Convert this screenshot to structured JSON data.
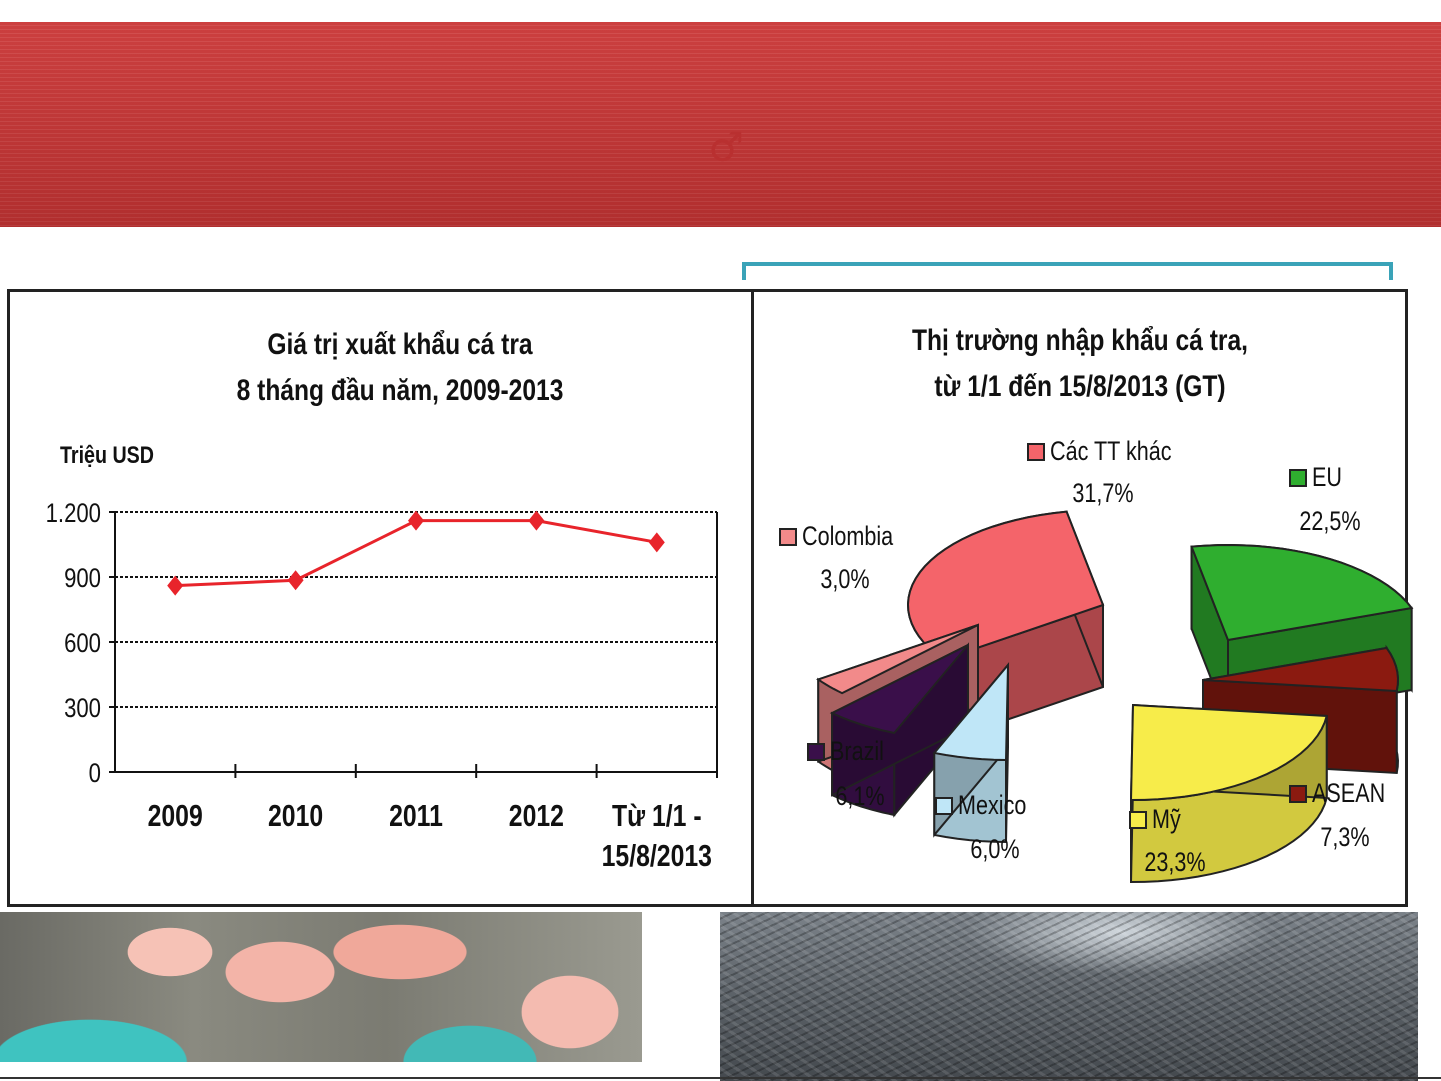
{
  "chart_data": [
    {
      "type": "line",
      "title_line1": "Giá trị xuất khẩu cá tra",
      "title_line2": "8 tháng đầu năm, 2009-2013",
      "ylabel": "Triệu USD",
      "categories": [
        {
          "line1": "2009",
          "line2": ""
        },
        {
          "line1": "2010",
          "line2": ""
        },
        {
          "line1": "2011",
          "line2": ""
        },
        {
          "line1": "2012",
          "line2": ""
        },
        {
          "line1": "Từ 1/1 -",
          "line2": "15/8/2013"
        }
      ],
      "values": [
        860,
        885,
        1160,
        1160,
        1060
      ],
      "ylim": [
        0,
        1200
      ],
      "yticks": [
        {
          "value": 0,
          "label": "0"
        },
        {
          "value": 300,
          "label": "300"
        },
        {
          "value": 600,
          "label": "600"
        },
        {
          "value": 900,
          "label": "900"
        },
        {
          "value": 1200,
          "label": "1.200"
        }
      ],
      "grid": true,
      "color": "#e8242b"
    },
    {
      "type": "pie",
      "title_line1": "Thị trường nhập khẩu cá tra,",
      "title_line2": "từ 1/1 đến 15/8/2013 (GT)",
      "slices": [
        {
          "name": "Các TT khác",
          "value": 31.7,
          "label": "31,7%",
          "color": "#f4646a"
        },
        {
          "name": "EU",
          "value": 22.5,
          "label": "22,5%",
          "color": "#2fae2f"
        },
        {
          "name": "ASEAN",
          "value": 7.3,
          "label": "7,3%",
          "color": "#8b1a10"
        },
        {
          "name": "Mỹ",
          "value": 23.3,
          "label": "23,3%",
          "color": "#f7ec4a"
        },
        {
          "name": "Mexico",
          "value": 6.0,
          "label": "6,0%",
          "color": "#bfe6f7"
        },
        {
          "name": "Brazil",
          "value": 6.1,
          "label": "6,1%",
          "color": "#3a0f4a"
        },
        {
          "name": "Colombia",
          "value": 3.0,
          "label": "3,0%",
          "color": "#f28a8a"
        }
      ]
    }
  ]
}
